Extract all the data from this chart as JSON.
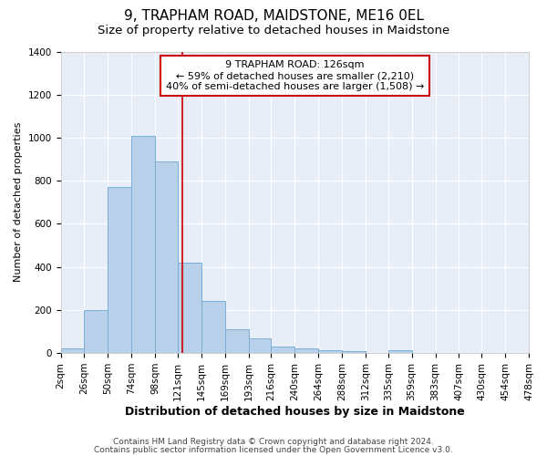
{
  "title": "9, TRAPHAM ROAD, MAIDSTONE, ME16 0EL",
  "subtitle": "Size of property relative to detached houses in Maidstone",
  "xlabel": "Distribution of detached houses by size in Maidstone",
  "ylabel": "Number of detached properties",
  "bin_edges": [
    2,
    26,
    50,
    74,
    98,
    121,
    145,
    169,
    193,
    216,
    240,
    264,
    288,
    312,
    335,
    359,
    383,
    407,
    430,
    454,
    478
  ],
  "bar_heights": [
    22,
    200,
    770,
    1010,
    890,
    420,
    240,
    110,
    70,
    28,
    22,
    15,
    10,
    0,
    12,
    0,
    0,
    0,
    0,
    0
  ],
  "bar_color": "#b8d0ea",
  "bar_edge_color": "#7bafd4",
  "vline_x": 126,
  "vline_color": "#cc0000",
  "ylim": [
    0,
    1400
  ],
  "yticks": [
    0,
    200,
    400,
    600,
    800,
    1000,
    1200,
    1400
  ],
  "annotation_line1": "9 TRAPHAM ROAD: 126sqm",
  "annotation_line2": "← 59% of detached houses are smaller (2,210)",
  "annotation_line3": "40% of semi-detached houses are larger (1,508) →",
  "annotation_box_color": "#cc0000",
  "annotation_box_bg": "#ffffff",
  "background_color": "#e8eef8",
  "grid_color": "#ffffff",
  "footer_line1": "Contains HM Land Registry data © Crown copyright and database right 2024.",
  "footer_line2": "Contains public sector information licensed under the Open Government Licence v3.0.",
  "title_fontsize": 11,
  "subtitle_fontsize": 9.5,
  "xlabel_fontsize": 9,
  "ylabel_fontsize": 8,
  "tick_fontsize": 7.5,
  "annotation_fontsize": 8,
  "footer_fontsize": 6.5
}
